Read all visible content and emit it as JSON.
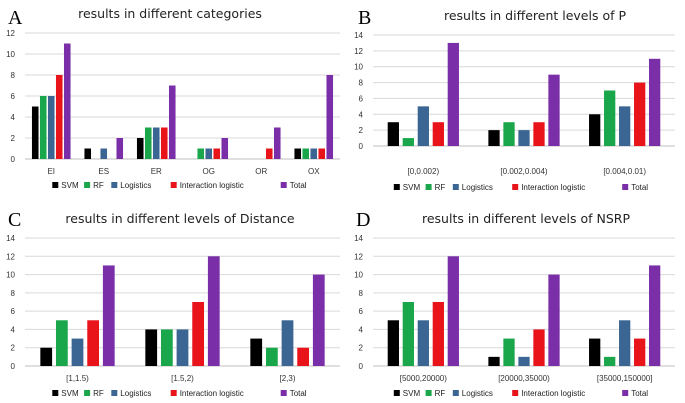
{
  "colors": {
    "SVM": "#000000",
    "RF": "#1aa64a",
    "Logistics": "#3b6694",
    "Interaction logistic": "#e8141a",
    "Total": "#7a2fa8",
    "grid": "#d9d9d9",
    "axis": "#bfbfbf"
  },
  "chart_data": [
    {
      "type": "bar",
      "panel": "A",
      "title": "results in different categories",
      "categories": [
        "EI",
        "ES",
        "ER",
        "OG",
        "OR",
        "OX"
      ],
      "ylim": [
        0,
        12
      ],
      "yticks": [
        0,
        2,
        4,
        6,
        8,
        10,
        12
      ],
      "grid": true,
      "legend": "bottom",
      "series": [
        {
          "name": "SVM",
          "values": [
            5,
            1,
            2,
            0,
            0,
            1
          ]
        },
        {
          "name": "RF",
          "values": [
            6,
            0,
            3,
            1,
            0,
            1
          ]
        },
        {
          "name": "Logistics",
          "values": [
            6,
            1,
            3,
            1,
            0,
            1
          ]
        },
        {
          "name": "Interaction logistic",
          "values": [
            8,
            0,
            3,
            1,
            1,
            1
          ]
        },
        {
          "name": "Total",
          "values": [
            11,
            2,
            7,
            2,
            3,
            8
          ]
        }
      ]
    },
    {
      "type": "bar",
      "panel": "B",
      "title": "results in different levels of P",
      "categories": [
        "[0,0.002)",
        "[0.002,0.004)",
        "[0.004,0.01)"
      ],
      "ylim": [
        0,
        14
      ],
      "yticks": [
        0,
        2,
        4,
        6,
        8,
        10,
        12,
        14
      ],
      "grid": true,
      "legend": "bottom",
      "series": [
        {
          "name": "SVM",
          "values": [
            3,
            2,
            4
          ]
        },
        {
          "name": "RF",
          "values": [
            1,
            3,
            7
          ]
        },
        {
          "name": "Logistics",
          "values": [
            5,
            2,
            5
          ]
        },
        {
          "name": "Interaction logistic",
          "values": [
            3,
            3,
            8
          ]
        },
        {
          "name": "Total",
          "values": [
            13,
            9,
            11
          ]
        }
      ]
    },
    {
      "type": "bar",
      "panel": "C",
      "title": "results in different levels of Distance",
      "categories": [
        "[1,1.5)",
        "[1.5,2)",
        "[2,3)"
      ],
      "ylim": [
        0,
        14
      ],
      "yticks": [
        0,
        2,
        4,
        6,
        8,
        10,
        12,
        14
      ],
      "grid": true,
      "legend": "bottom",
      "series": [
        {
          "name": "SVM",
          "values": [
            2,
            4,
            3
          ]
        },
        {
          "name": "RF",
          "values": [
            5,
            4,
            2
          ]
        },
        {
          "name": "Logistics",
          "values": [
            3,
            4,
            5
          ]
        },
        {
          "name": "Interaction logistic",
          "values": [
            5,
            7,
            2
          ]
        },
        {
          "name": "Total",
          "values": [
            11,
            12,
            10
          ]
        }
      ]
    },
    {
      "type": "bar",
      "panel": "D",
      "title": "results in different levels of NSRP",
      "categories": [
        "[5000,20000)",
        "[20000,35000)",
        "[35000,150000]"
      ],
      "ylim": [
        0,
        14
      ],
      "yticks": [
        0,
        2,
        4,
        6,
        8,
        10,
        12,
        14
      ],
      "grid": true,
      "legend": "bottom",
      "series": [
        {
          "name": "SVM",
          "values": [
            5,
            1,
            3
          ]
        },
        {
          "name": "RF",
          "values": [
            7,
            3,
            1
          ]
        },
        {
          "name": "Logistics",
          "values": [
            5,
            1,
            5
          ]
        },
        {
          "name": "Interaction logistic",
          "values": [
            7,
            4,
            3
          ]
        },
        {
          "name": "Total",
          "values": [
            12,
            10,
            11
          ]
        }
      ]
    }
  ]
}
